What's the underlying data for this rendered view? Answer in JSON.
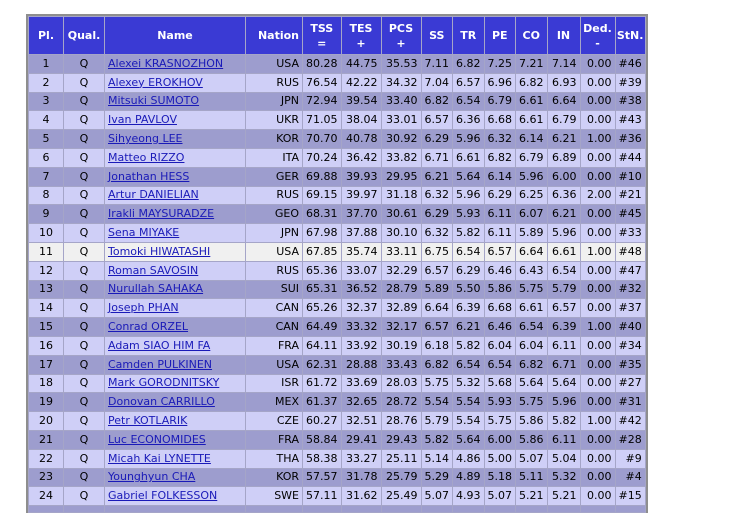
{
  "columns": [
    {
      "l1": "Pl.",
      "l2": ""
    },
    {
      "l1": "Qual.",
      "l2": ""
    },
    {
      "l1": "Name",
      "l2": ""
    },
    {
      "l1": "Nation",
      "l2": ""
    },
    {
      "l1": "TSS",
      "l2": "="
    },
    {
      "l1": "TES",
      "l2": "+"
    },
    {
      "l1": "PCS",
      "l2": "+"
    },
    {
      "l1": "SS",
      "l2": ""
    },
    {
      "l1": "TR",
      "l2": ""
    },
    {
      "l1": "PE",
      "l2": ""
    },
    {
      "l1": "CO",
      "l2": ""
    },
    {
      "l1": "IN",
      "l2": ""
    },
    {
      "l1": "Ded.",
      "l2": "-"
    },
    {
      "l1": "StN.",
      "l2": ""
    }
  ],
  "rows": [
    {
      "pl": "1",
      "q": "Q",
      "name": "Alexei KRASNOZHON",
      "nation": "USA",
      "tss": "80.28",
      "tes": "44.75",
      "pcs": "35.53",
      "ss": "7.11",
      "tr": "6.82",
      "pe": "7.25",
      "co": "7.21",
      "in": "7.14",
      "ded": "0.00",
      "stn": "#46"
    },
    {
      "pl": "2",
      "q": "Q",
      "name": "Alexey EROKHOV",
      "nation": "RUS",
      "tss": "76.54",
      "tes": "42.22",
      "pcs": "34.32",
      "ss": "7.04",
      "tr": "6.57",
      "pe": "6.96",
      "co": "6.82",
      "in": "6.93",
      "ded": "0.00",
      "stn": "#39"
    },
    {
      "pl": "3",
      "q": "Q",
      "name": "Mitsuki SUMOTO",
      "nation": "JPN",
      "tss": "72.94",
      "tes": "39.54",
      "pcs": "33.40",
      "ss": "6.82",
      "tr": "6.54",
      "pe": "6.79",
      "co": "6.61",
      "in": "6.64",
      "ded": "0.00",
      "stn": "#38"
    },
    {
      "pl": "4",
      "q": "Q",
      "name": "Ivan PAVLOV",
      "nation": "UKR",
      "tss": "71.05",
      "tes": "38.04",
      "pcs": "33.01",
      "ss": "6.57",
      "tr": "6.36",
      "pe": "6.68",
      "co": "6.61",
      "in": "6.79",
      "ded": "0.00",
      "stn": "#43"
    },
    {
      "pl": "5",
      "q": "Q",
      "name": "Sihyeong LEE",
      "nation": "KOR",
      "tss": "70.70",
      "tes": "40.78",
      "pcs": "30.92",
      "ss": "6.29",
      "tr": "5.96",
      "pe": "6.32",
      "co": "6.14",
      "in": "6.21",
      "ded": "1.00",
      "stn": "#36"
    },
    {
      "pl": "6",
      "q": "Q",
      "name": "Matteo RIZZO",
      "nation": "ITA",
      "tss": "70.24",
      "tes": "36.42",
      "pcs": "33.82",
      "ss": "6.71",
      "tr": "6.61",
      "pe": "6.82",
      "co": "6.79",
      "in": "6.89",
      "ded": "0.00",
      "stn": "#44"
    },
    {
      "pl": "7",
      "q": "Q",
      "name": "Jonathan HESS",
      "nation": "GER",
      "tss": "69.88",
      "tes": "39.93",
      "pcs": "29.95",
      "ss": "6.21",
      "tr": "5.64",
      "pe": "6.14",
      "co": "5.96",
      "in": "6.00",
      "ded": "0.00",
      "stn": "#10"
    },
    {
      "pl": "8",
      "q": "Q",
      "name": "Artur DANIELIAN",
      "nation": "RUS",
      "tss": "69.15",
      "tes": "39.97",
      "pcs": "31.18",
      "ss": "6.32",
      "tr": "5.96",
      "pe": "6.29",
      "co": "6.25",
      "in": "6.36",
      "ded": "2.00",
      "stn": "#21"
    },
    {
      "pl": "9",
      "q": "Q",
      "name": "Irakli MAYSURADZE",
      "nation": "GEO",
      "tss": "68.31",
      "tes": "37.70",
      "pcs": "30.61",
      "ss": "6.29",
      "tr": "5.93",
      "pe": "6.11",
      "co": "6.07",
      "in": "6.21",
      "ded": "0.00",
      "stn": "#45"
    },
    {
      "pl": "10",
      "q": "Q",
      "name": "Sena MIYAKE",
      "nation": "JPN",
      "tss": "67.98",
      "tes": "37.88",
      "pcs": "30.10",
      "ss": "6.32",
      "tr": "5.82",
      "pe": "6.11",
      "co": "5.89",
      "in": "5.96",
      "ded": "0.00",
      "stn": "#33"
    },
    {
      "pl": "11",
      "q": "Q",
      "name": "Tomoki HIWATASHI",
      "nation": "USA",
      "tss": "67.85",
      "tes": "35.74",
      "pcs": "33.11",
      "ss": "6.75",
      "tr": "6.54",
      "pe": "6.57",
      "co": "6.64",
      "in": "6.61",
      "ded": "1.00",
      "stn": "#48"
    },
    {
      "pl": "12",
      "q": "Q",
      "name": "Roman SAVOSIN",
      "nation": "RUS",
      "tss": "65.36",
      "tes": "33.07",
      "pcs": "32.29",
      "ss": "6.57",
      "tr": "6.29",
      "pe": "6.46",
      "co": "6.43",
      "in": "6.54",
      "ded": "0.00",
      "stn": "#47"
    },
    {
      "pl": "13",
      "q": "Q",
      "name": "Nurullah SAHAKA",
      "nation": "SUI",
      "tss": "65.31",
      "tes": "36.52",
      "pcs": "28.79",
      "ss": "5.89",
      "tr": "5.50",
      "pe": "5.86",
      "co": "5.75",
      "in": "5.79",
      "ded": "0.00",
      "stn": "#32"
    },
    {
      "pl": "14",
      "q": "Q",
      "name": "Joseph PHAN",
      "nation": "CAN",
      "tss": "65.26",
      "tes": "32.37",
      "pcs": "32.89",
      "ss": "6.64",
      "tr": "6.39",
      "pe": "6.68",
      "co": "6.61",
      "in": "6.57",
      "ded": "0.00",
      "stn": "#37"
    },
    {
      "pl": "15",
      "q": "Q",
      "name": "Conrad ORZEL",
      "nation": "CAN",
      "tss": "64.49",
      "tes": "33.32",
      "pcs": "32.17",
      "ss": "6.57",
      "tr": "6.21",
      "pe": "6.46",
      "co": "6.54",
      "in": "6.39",
      "ded": "1.00",
      "stn": "#40"
    },
    {
      "pl": "16",
      "q": "Q",
      "name": "Adam SIAO HIM FA",
      "nation": "FRA",
      "tss": "64.11",
      "tes": "33.92",
      "pcs": "30.19",
      "ss": "6.18",
      "tr": "5.82",
      "pe": "6.04",
      "co": "6.04",
      "in": "6.11",
      "ded": "0.00",
      "stn": "#34"
    },
    {
      "pl": "17",
      "q": "Q",
      "name": "Camden PULKINEN",
      "nation": "USA",
      "tss": "62.31",
      "tes": "28.88",
      "pcs": "33.43",
      "ss": "6.82",
      "tr": "6.54",
      "pe": "6.54",
      "co": "6.82",
      "in": "6.71",
      "ded": "0.00",
      "stn": "#35"
    },
    {
      "pl": "18",
      "q": "Q",
      "name": "Mark GORODNITSKY",
      "nation": "ISR",
      "tss": "61.72",
      "tes": "33.69",
      "pcs": "28.03",
      "ss": "5.75",
      "tr": "5.32",
      "pe": "5.68",
      "co": "5.64",
      "in": "5.64",
      "ded": "0.00",
      "stn": "#27"
    },
    {
      "pl": "19",
      "q": "Q",
      "name": "Donovan CARRILLO",
      "nation": "MEX",
      "tss": "61.37",
      "tes": "32.65",
      "pcs": "28.72",
      "ss": "5.54",
      "tr": "5.54",
      "pe": "5.93",
      "co": "5.75",
      "in": "5.96",
      "ded": "0.00",
      "stn": "#31"
    },
    {
      "pl": "20",
      "q": "Q",
      "name": "Petr KOTLARIK",
      "nation": "CZE",
      "tss": "60.27",
      "tes": "32.51",
      "pcs": "28.76",
      "ss": "5.79",
      "tr": "5.54",
      "pe": "5.75",
      "co": "5.86",
      "in": "5.82",
      "ded": "1.00",
      "stn": "#42"
    },
    {
      "pl": "21",
      "q": "Q",
      "name": "Luc ECONOMIDES",
      "nation": "FRA",
      "tss": "58.84",
      "tes": "29.41",
      "pcs": "29.43",
      "ss": "5.82",
      "tr": "5.64",
      "pe": "6.00",
      "co": "5.86",
      "in": "6.11",
      "ded": "0.00",
      "stn": "#28"
    },
    {
      "pl": "22",
      "q": "Q",
      "name": "Micah Kai LYNETTE",
      "nation": "THA",
      "tss": "58.38",
      "tes": "33.27",
      "pcs": "25.11",
      "ss": "5.14",
      "tr": "4.86",
      "pe": "5.00",
      "co": "5.07",
      "in": "5.04",
      "ded": "0.00",
      "stn": "#9"
    },
    {
      "pl": "23",
      "q": "Q",
      "name": "Younghyun CHA",
      "nation": "KOR",
      "tss": "57.57",
      "tes": "31.78",
      "pcs": "25.79",
      "ss": "5.29",
      "tr": "4.89",
      "pe": "5.18",
      "co": "5.11",
      "in": "5.32",
      "ded": "0.00",
      "stn": "#4"
    },
    {
      "pl": "24",
      "q": "Q",
      "name": "Gabriel FOLKESSON",
      "nation": "SWE",
      "tss": "57.11",
      "tes": "31.62",
      "pcs": "25.49",
      "ss": "5.07",
      "tr": "4.93",
      "pe": "5.07",
      "co": "5.21",
      "in": "5.21",
      "ded": "0.00",
      "stn": "#15"
    }
  ],
  "highlighted_row_index": 10
}
